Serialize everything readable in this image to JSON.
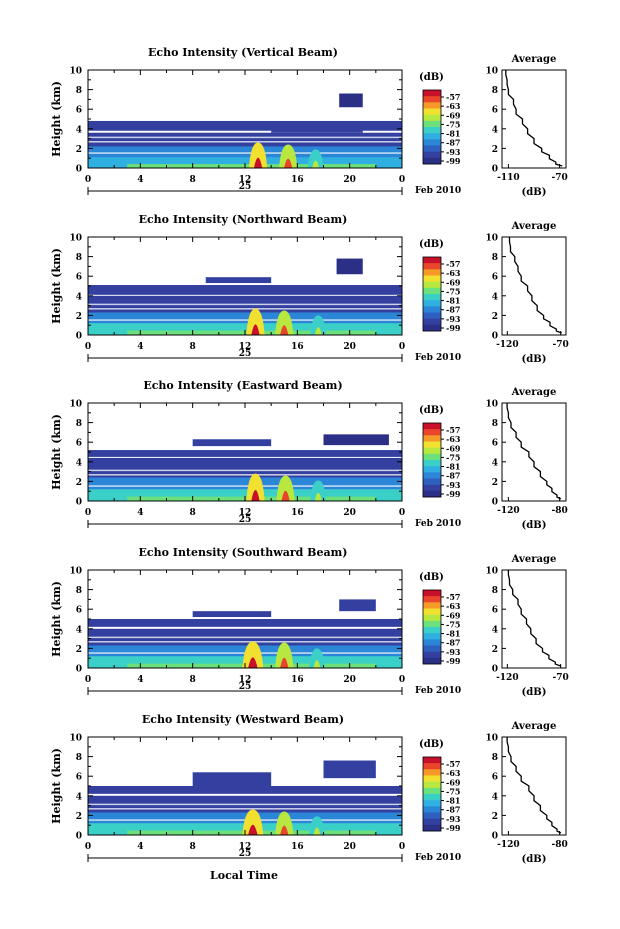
{
  "figure": {
    "xlabel": "Local Time",
    "date_label": "Feb 2010",
    "day_label": "25",
    "ylabel": "Height (km)",
    "colorbar_unit": "(dB)",
    "colorbar_ticks": [
      "-57",
      "-63",
      "-69",
      "-75",
      "-81",
      "-87",
      "-93",
      "-99"
    ],
    "x_ticks": [
      "0",
      "4",
      "8",
      "12",
      "16",
      "20",
      "0"
    ],
    "y_ticks": [
      "0",
      "2",
      "4",
      "6",
      "8",
      "10"
    ],
    "profile_title": "Average",
    "profile_xlabel": "(dB)",
    "colors": [
      "#2b2f86",
      "#3340a0",
      "#2f5fc0",
      "#2b86d8",
      "#2fb0e0",
      "#3ad0c8",
      "#6ce07a",
      "#b8e840",
      "#f2e030",
      "#f59a28",
      "#e8452a",
      "#c8102a"
    ]
  },
  "chart_data": [
    {
      "type": "heatmap",
      "title": "Echo Intensity (Vertical Beam)",
      "xlabel": "Local Time",
      "ylabel": "Height (km)",
      "xlim": [
        0,
        24
      ],
      "ylim": [
        0,
        10
      ],
      "clim": [
        -99,
        -57
      ],
      "layers": [
        {
          "from": 0,
          "to": 24,
          "top": 3.6,
          "level": 0.12
        },
        {
          "from": 0,
          "to": 24,
          "top": 2.2,
          "level": 0.25
        },
        {
          "from": 0,
          "to": 24,
          "top": 1.1,
          "level": 0.4
        },
        {
          "from": 3,
          "to": 22,
          "top": 0.4,
          "level": 0.55
        }
      ],
      "bands": [
        {
          "from": 0,
          "to": 24,
          "bottom": 3.8,
          "top": 4.8,
          "level": 0.05
        },
        {
          "from": 14,
          "to": 21,
          "bottom": 3.6,
          "top": 4.2,
          "level": 0.08
        },
        {
          "from": 19.2,
          "to": 21,
          "bottom": 6.2,
          "top": 7.6,
          "level": 0.04
        }
      ],
      "cells": [
        {
          "x": 13.0,
          "width": 0.7,
          "top": 2.6,
          "level": 1.0
        },
        {
          "x": 15.3,
          "width": 0.7,
          "top": 2.4,
          "level": 0.9
        },
        {
          "x": 17.4,
          "width": 0.6,
          "top": 1.9,
          "level": 0.6
        }
      ],
      "profile": {
        "xticks": [
          "-110",
          "-70"
        ],
        "xlim": [
          -115,
          -65
        ],
        "ylim": [
          0,
          10
        ],
        "x": [
          -112,
          -111,
          -110,
          -106,
          -104,
          -99,
          -95,
          -90,
          -84,
          -78,
          -73,
          -68
        ],
        "y": [
          10,
          9,
          8,
          7,
          6,
          5,
          4,
          3,
          2,
          1.3,
          0.6,
          0.2
        ]
      }
    },
    {
      "type": "heatmap",
      "title": "Echo Intensity (Northward Beam)",
      "xlabel": "Local Time",
      "ylabel": "Height (km)",
      "xlim": [
        0,
        24
      ],
      "ylim": [
        0,
        10
      ],
      "clim": [
        -99,
        -57
      ],
      "layers": [
        {
          "from": 0,
          "to": 24,
          "top": 4.0,
          "level": 0.1
        },
        {
          "from": 0,
          "to": 24,
          "top": 2.3,
          "level": 0.24
        },
        {
          "from": 0,
          "to": 24,
          "top": 1.2,
          "level": 0.42
        },
        {
          "from": 3,
          "to": 22,
          "top": 0.45,
          "level": 0.58
        }
      ],
      "bands": [
        {
          "from": 0,
          "to": 24,
          "bottom": 4.1,
          "top": 5.1,
          "level": 0.05
        },
        {
          "from": 9,
          "to": 14,
          "bottom": 5.3,
          "top": 5.9,
          "level": 0.06
        },
        {
          "from": 19,
          "to": 21,
          "bottom": 6.2,
          "top": 7.8,
          "level": 0.04
        }
      ],
      "cells": [
        {
          "x": 12.8,
          "width": 0.7,
          "top": 2.7,
          "level": 1.0
        },
        {
          "x": 15.0,
          "width": 0.7,
          "top": 2.5,
          "level": 0.9
        },
        {
          "x": 17.6,
          "width": 0.6,
          "top": 2.0,
          "level": 0.6
        }
      ],
      "profile": {
        "xticks": [
          "-120",
          "-70"
        ],
        "xlim": [
          -125,
          -65
        ],
        "ylim": [
          0,
          10
        ],
        "x": [
          -118,
          -117,
          -113,
          -110,
          -107,
          -101,
          -97,
          -92,
          -86,
          -80,
          -74,
          -69
        ],
        "y": [
          10,
          9,
          8,
          7,
          6,
          5,
          4,
          3,
          2,
          1.3,
          0.6,
          0.2
        ]
      }
    },
    {
      "type": "heatmap",
      "title": "Echo Intensity (Eastward Beam)",
      "xlabel": "Local Time",
      "ylabel": "Height (km)",
      "xlim": [
        0,
        24
      ],
      "ylim": [
        0,
        10
      ],
      "clim": [
        -99,
        -57
      ],
      "layers": [
        {
          "from": 0,
          "to": 24,
          "top": 4.4,
          "level": 0.1
        },
        {
          "from": 0,
          "to": 24,
          "top": 2.4,
          "level": 0.24
        },
        {
          "from": 0,
          "to": 24,
          "top": 1.2,
          "level": 0.42
        },
        {
          "from": 3,
          "to": 22,
          "top": 0.45,
          "level": 0.58
        }
      ],
      "bands": [
        {
          "from": 0,
          "to": 24,
          "bottom": 4.5,
          "top": 5.2,
          "level": 0.05
        },
        {
          "from": 8,
          "to": 14,
          "bottom": 5.6,
          "top": 6.3,
          "level": 0.05
        },
        {
          "from": 18,
          "to": 23,
          "bottom": 5.7,
          "top": 6.8,
          "level": 0.04
        }
      ],
      "cells": [
        {
          "x": 12.8,
          "width": 0.7,
          "top": 2.8,
          "level": 1.0
        },
        {
          "x": 15.1,
          "width": 0.7,
          "top": 2.6,
          "level": 0.95
        },
        {
          "x": 17.6,
          "width": 0.6,
          "top": 2.1,
          "level": 0.6
        }
      ],
      "profile": {
        "xticks": [
          "-120",
          "-80"
        ],
        "xlim": [
          -125,
          -75
        ],
        "ylim": [
          0,
          10
        ],
        "x": [
          -121,
          -120,
          -118,
          -114,
          -110,
          -104,
          -100,
          -95,
          -90,
          -86,
          -82,
          -79
        ],
        "y": [
          10,
          9,
          8,
          7,
          6,
          5,
          4,
          3,
          2,
          1.3,
          0.6,
          0.2
        ]
      }
    },
    {
      "type": "heatmap",
      "title": "Echo Intensity (Southward Beam)",
      "xlabel": "Local Time",
      "ylabel": "Height (km)",
      "xlim": [
        0,
        24
      ],
      "ylim": [
        0,
        10
      ],
      "clim": [
        -99,
        -57
      ],
      "layers": [
        {
          "from": 0,
          "to": 24,
          "top": 4.0,
          "level": 0.1
        },
        {
          "from": 0,
          "to": 24,
          "top": 2.3,
          "level": 0.24
        },
        {
          "from": 0,
          "to": 24,
          "top": 1.2,
          "level": 0.42
        },
        {
          "from": 3,
          "to": 22,
          "top": 0.45,
          "level": 0.58
        }
      ],
      "bands": [
        {
          "from": 0,
          "to": 24,
          "bottom": 4.2,
          "top": 5.0,
          "level": 0.05
        },
        {
          "from": 8,
          "to": 14,
          "bottom": 5.2,
          "top": 5.8,
          "level": 0.05
        },
        {
          "from": 19.2,
          "to": 22,
          "bottom": 5.8,
          "top": 7.0,
          "level": 0.05
        }
      ],
      "cells": [
        {
          "x": 12.6,
          "width": 0.8,
          "top": 2.7,
          "level": 1.0
        },
        {
          "x": 15.0,
          "width": 0.7,
          "top": 2.6,
          "level": 0.9
        },
        {
          "x": 17.5,
          "width": 0.6,
          "top": 2.0,
          "level": 0.6
        }
      ],
      "profile": {
        "xticks": [
          "-120",
          "-70"
        ],
        "xlim": [
          -125,
          -65
        ],
        "ylim": [
          0,
          10
        ],
        "x": [
          -119,
          -118,
          -115,
          -110,
          -107,
          -102,
          -98,
          -93,
          -87,
          -81,
          -75,
          -70
        ],
        "y": [
          10,
          9,
          8,
          7,
          6,
          5,
          4,
          3,
          2,
          1.3,
          0.6,
          0.2
        ]
      }
    },
    {
      "type": "heatmap",
      "title": "Echo Intensity (Westward Beam)",
      "xlabel": "Local Time",
      "ylabel": "Height (km)",
      "xlim": [
        0,
        24
      ],
      "ylim": [
        0,
        10
      ],
      "clim": [
        -99,
        -57
      ],
      "layers": [
        {
          "from": 0,
          "to": 24,
          "top": 4.0,
          "level": 0.1
        },
        {
          "from": 0,
          "to": 24,
          "top": 2.3,
          "level": 0.24
        },
        {
          "from": 0,
          "to": 24,
          "top": 1.2,
          "level": 0.42
        },
        {
          "from": 3,
          "to": 22,
          "top": 0.45,
          "level": 0.58
        }
      ],
      "bands": [
        {
          "from": 0,
          "to": 24,
          "bottom": 4.2,
          "top": 5.0,
          "level": 0.05
        },
        {
          "from": 8,
          "to": 14,
          "bottom": 5.0,
          "top": 6.4,
          "level": 0.05
        },
        {
          "from": 18,
          "to": 22,
          "bottom": 5.8,
          "top": 7.6,
          "level": 0.05
        }
      ],
      "cells": [
        {
          "x": 12.6,
          "width": 0.8,
          "top": 2.6,
          "level": 1.0
        },
        {
          "x": 15.0,
          "width": 0.7,
          "top": 2.4,
          "level": 0.9
        },
        {
          "x": 17.5,
          "width": 0.6,
          "top": 1.9,
          "level": 0.6
        }
      ],
      "profile": {
        "xticks": [
          "-120",
          "-80"
        ],
        "xlim": [
          -125,
          -75
        ],
        "ylim": [
          0,
          10
        ],
        "x": [
          -121,
          -120,
          -118,
          -114,
          -110,
          -104,
          -100,
          -95,
          -90,
          -86,
          -82,
          -79
        ],
        "y": [
          10,
          9,
          8,
          7,
          6,
          5,
          4,
          3,
          2,
          1.3,
          0.6,
          0.2
        ]
      }
    }
  ]
}
